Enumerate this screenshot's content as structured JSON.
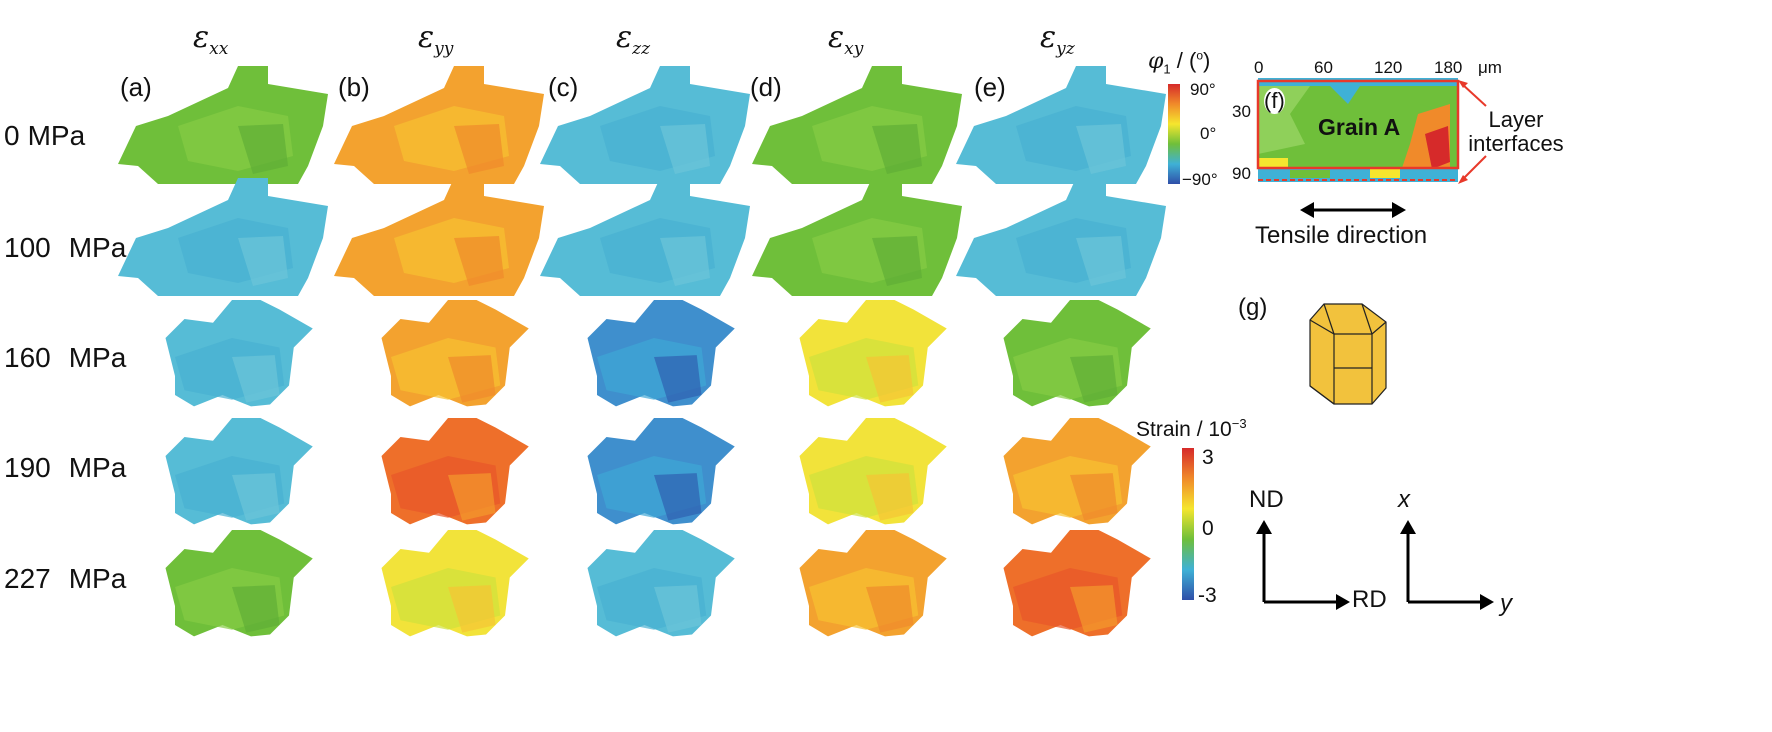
{
  "column_titles": [
    {
      "base": "ε",
      "sub": "xx"
    },
    {
      "base": "ε",
      "sub": "yy"
    },
    {
      "base": "ε",
      "sub": "zz"
    },
    {
      "base": "ε",
      "sub": "xy"
    },
    {
      "base": "ε",
      "sub": "yz"
    }
  ],
  "panel_letters": [
    "(a)",
    "(b)",
    "(c)",
    "(d)",
    "(e)",
    "(f)",
    "(g)"
  ],
  "rows": [
    {
      "value": "0",
      "unit": "MPa"
    },
    {
      "value": "100",
      "unit": "MPa"
    },
    {
      "value": "160",
      "unit": "MPa"
    },
    {
      "value": "190",
      "unit": "MPa"
    },
    {
      "value": "227",
      "unit": "MPa"
    }
  ],
  "phi_colorbar": {
    "title": "φ1 / (o)",
    "ticks": [
      "90°",
      "0°",
      "−90°"
    ],
    "colors": [
      "#d62a2a",
      "#f08a2a",
      "#f5e62e",
      "#6fbf3a",
      "#3fb1d6",
      "#2f4fa8"
    ]
  },
  "strain_colorbar": {
    "title": "Strain / 10−3",
    "ticks": [
      "3",
      "0",
      "-3"
    ],
    "colors": [
      "#d62a2a",
      "#f08a2a",
      "#f5e62e",
      "#6fbf3a",
      "#3fb1d6",
      "#2f4fa8"
    ]
  },
  "inset_f": {
    "x_ticks": [
      "0",
      "60",
      "120",
      "180"
    ],
    "x_unit": "μm",
    "y_ticks": [
      "30",
      "90"
    ],
    "grain_label": "Grain A",
    "annotation": "Layer interfaces",
    "tensile_label": "Tensile direction"
  },
  "axes_sample": {
    "up": "ND",
    "right": "RD"
  },
  "axes_crystal": {
    "up": "x",
    "right": "y"
  },
  "strain_maps": {
    "rows": [
      [
        "green",
        "orange",
        "cyan",
        "green",
        "cyan"
      ],
      [
        "cyan",
        "orange",
        "cyan",
        "green",
        "cyan"
      ],
      [
        "cyan",
        "orange",
        "blue",
        "yellow",
        "green"
      ],
      [
        "cyan",
        "red",
        "blue",
        "yellow",
        "orange"
      ],
      [
        "green",
        "yellow",
        "cyan",
        "orange",
        "red"
      ]
    ]
  }
}
